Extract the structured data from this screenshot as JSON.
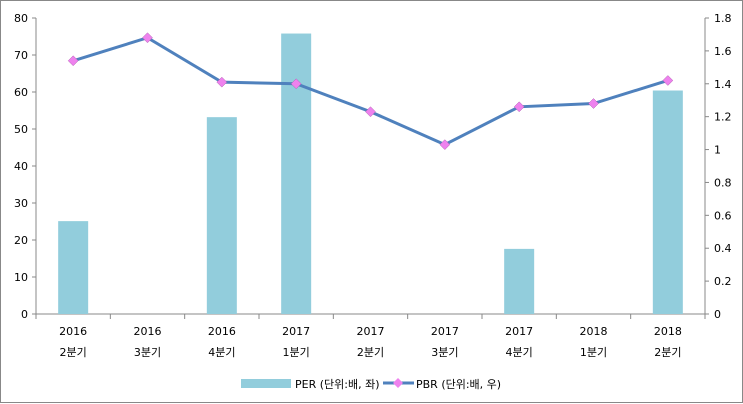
{
  "chart_data": {
    "type": "bar+line",
    "categories": [
      [
        "2016",
        "2분기"
      ],
      [
        "2016",
        "3분기"
      ],
      [
        "2016",
        "4분기"
      ],
      [
        "2017",
        "1분기"
      ],
      [
        "2017",
        "2분기"
      ],
      [
        "2017",
        "3분기"
      ],
      [
        "2017",
        "4분기"
      ],
      [
        "2018",
        "1분기"
      ],
      [
        "2018",
        "2분기"
      ]
    ],
    "series": [
      {
        "name": "PER (단위:배, 좌)",
        "type": "bar",
        "axis": "left",
        "color": "#92CDDC",
        "values": [
          25.1,
          null,
          53.2,
          75.8,
          null,
          null,
          17.6,
          null,
          60.4
        ]
      },
      {
        "name": "PBR (단위:배, 우)",
        "type": "line",
        "axis": "right",
        "color": "#4F81BD",
        "marker_color": "#EE82EE",
        "values": [
          1.54,
          1.68,
          1.41,
          1.4,
          1.23,
          1.03,
          1.26,
          1.28,
          1.42
        ]
      }
    ],
    "left_axis": {
      "min": 0,
      "max": 80,
      "ticks": [
        "0",
        "10",
        "20",
        "30",
        "40",
        "50",
        "60",
        "70",
        "80"
      ]
    },
    "right_axis": {
      "min": 0,
      "max": 1.8,
      "ticks": [
        "0",
        "0.2",
        "0.4",
        "0.6",
        "0.8",
        "1",
        "1.2",
        "1.4",
        "1.6",
        "1.8"
      ]
    },
    "legend": "bottom",
    "grid": false
  }
}
